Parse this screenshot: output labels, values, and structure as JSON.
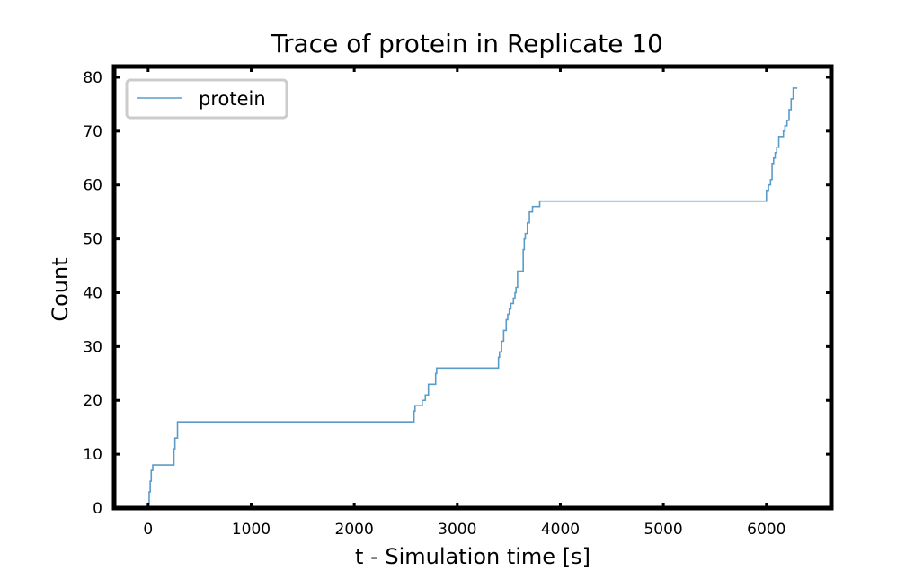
{
  "chart_data": {
    "type": "line",
    "title": "Trace of protein in Replicate 10",
    "xlabel": "t - Simulation time [s]",
    "ylabel": "Count",
    "xlim": [
      -330,
      6630
    ],
    "ylim": [
      0,
      82
    ],
    "xticks": [
      0,
      1000,
      2000,
      3000,
      4000,
      5000,
      6000
    ],
    "yticks": [
      0,
      10,
      20,
      30,
      40,
      50,
      60,
      70,
      80
    ],
    "grid": false,
    "legend_position": "top-left",
    "step": "post",
    "series": [
      {
        "name": "protein",
        "color": "#5b9bc8",
        "x": [
          0,
          10,
          20,
          30,
          45,
          60,
          250,
          260,
          270,
          285,
          300,
          2580,
          2590,
          2620,
          2660,
          2690,
          2720,
          2760,
          2790,
          2800,
          3400,
          3410,
          3430,
          3450,
          3475,
          3490,
          3505,
          3520,
          3545,
          3560,
          3570,
          3585,
          3600,
          3640,
          3650,
          3660,
          3680,
          3700,
          3730,
          3750,
          3800,
          6000,
          6010,
          6020,
          6040,
          6055,
          6070,
          6085,
          6100,
          6120,
          6140,
          6165,
          6180,
          6200,
          6220,
          6240,
          6260,
          6280,
          6300
        ],
        "y": [
          1,
          3,
          5,
          7,
          8,
          8,
          11,
          13,
          13,
          16,
          16,
          18,
          19,
          19,
          20,
          21,
          23,
          23,
          25,
          26,
          28,
          29,
          31,
          33,
          35,
          36,
          37,
          38,
          39,
          40,
          41,
          44,
          44,
          48,
          50,
          51,
          53,
          55,
          56,
          56,
          57,
          59,
          59,
          60,
          61,
          64,
          65,
          66,
          67,
          69,
          69,
          70,
          71,
          72,
          74,
          76,
          78,
          78,
          78
        ]
      }
    ]
  }
}
